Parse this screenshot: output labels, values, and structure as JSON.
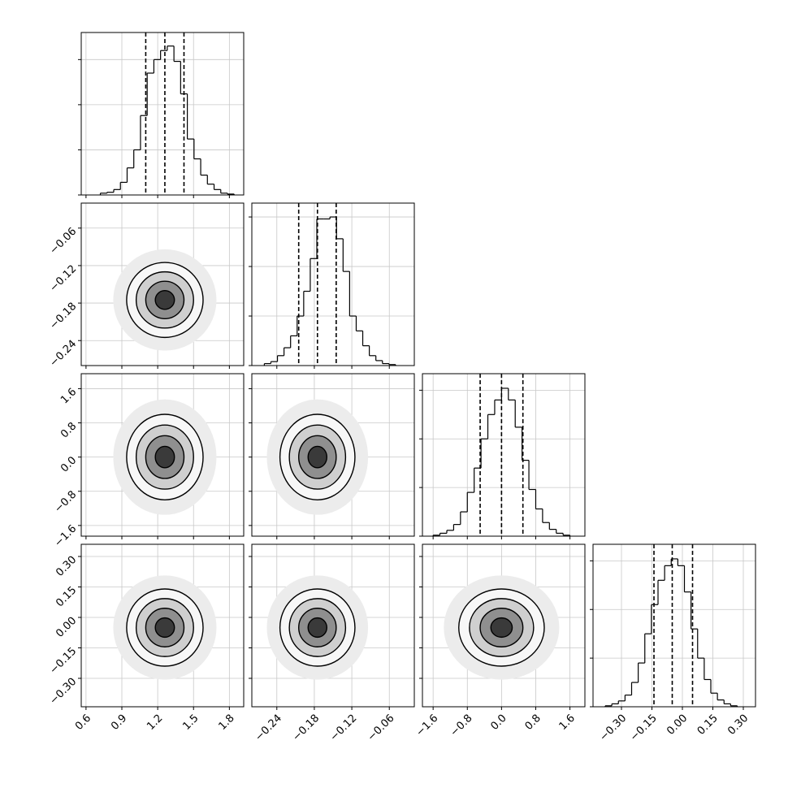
{
  "chart_data": {
    "type": "corner",
    "grid": true,
    "color": "#000000",
    "params": [
      {
        "lim": [
          0.56,
          1.92
        ],
        "ticks": [
          0.6,
          0.9,
          1.2,
          1.5,
          1.8
        ],
        "quantiles": [
          1.1,
          1.26,
          1.42
        ],
        "bins": [
          0.72,
          0.776,
          0.832,
          0.888,
          0.944,
          1.0,
          1.056,
          1.112,
          1.168,
          1.224,
          1.28,
          1.336,
          1.392,
          1.448,
          1.504,
          1.56,
          1.616,
          1.672,
          1.728,
          1.784,
          1.84
        ],
        "counts": [
          2,
          3,
          6,
          14,
          30,
          50,
          88,
          135,
          150,
          160,
          165,
          148,
          112,
          62,
          40,
          22,
          12,
          6,
          2,
          1
        ],
        "hist_ylim": [
          0,
          180
        ],
        "hist_yticks": [
          0,
          50,
          100,
          150
        ]
      },
      {
        "lim": [
          -0.28,
          -0.02
        ],
        "ticks": [
          {
            "value": -0.24,
            "label": "−0.24"
          },
          {
            "value": -0.18,
            "label": "−0.18"
          },
          {
            "value": -0.12,
            "label": "−0.12"
          },
          {
            "value": -0.06,
            "label": "−0.06"
          }
        ],
        "quantiles": [
          -0.205,
          -0.175,
          -0.145
        ],
        "bins": [
          -0.26,
          -0.2495,
          -0.239,
          -0.2285,
          -0.218,
          -0.2075,
          -0.197,
          -0.1865,
          -0.176,
          -0.1655,
          -0.155,
          -0.1445,
          -0.134,
          -0.1235,
          -0.113,
          -0.1025,
          -0.092,
          -0.0815,
          -0.071,
          -0.0605,
          -0.05
        ],
        "counts": [
          2,
          4,
          10,
          18,
          30,
          50,
          75,
          108,
          148,
          148,
          150,
          128,
          95,
          50,
          35,
          20,
          10,
          5,
          2,
          1
        ],
        "hist_ylim": [
          0,
          164
        ],
        "hist_yticks": [
          0,
          50,
          100,
          150
        ]
      },
      {
        "lim": [
          -1.85,
          1.95
        ],
        "ticks": [
          {
            "value": -1.6,
            "label": "−1.6"
          },
          {
            "value": -0.8,
            "label": "−0.8"
          },
          {
            "value": 0.0,
            "label": "0.0"
          },
          0.8,
          1.6
        ],
        "quantiles": [
          -0.5,
          0.0,
          0.5
        ],
        "bins": [
          -1.6,
          -1.44,
          -1.28,
          -1.12,
          -0.96,
          -0.8,
          -0.64,
          -0.48,
          -0.32,
          -0.16,
          0.0,
          0.16,
          0.32,
          0.48,
          0.64,
          0.8,
          0.96,
          1.12,
          1.28,
          1.44,
          1.6
        ],
        "counts": [
          1,
          3,
          6,
          12,
          25,
          45,
          70,
          100,
          125,
          140,
          152,
          140,
          112,
          78,
          48,
          28,
          14,
          7,
          3,
          1
        ],
        "hist_ylim": [
          0,
          167
        ],
        "hist_yticks": [
          0,
          50,
          100,
          150
        ]
      },
      {
        "lim": [
          -0.44,
          0.36
        ],
        "ticks": [
          {
            "value": -0.3,
            "label": "−0.30"
          },
          {
            "value": -0.15,
            "label": "−0.15"
          },
          {
            "value": 0.0,
            "label": "0.00"
          },
          {
            "value": 0.15,
            "label": "0.15"
          },
          {
            "value": 0.3,
            "label": "0.30"
          }
        ],
        "quantiles": [
          -0.14,
          -0.05,
          0.05
        ],
        "bins": [
          -0.38,
          -0.3475,
          -0.315,
          -0.2825,
          -0.25,
          -0.2175,
          -0.185,
          -0.1525,
          -0.12,
          -0.0875,
          -0.055,
          -0.0225,
          0.01,
          0.0425,
          0.075,
          0.1075,
          0.14,
          0.1725,
          0.205,
          0.2375,
          0.27
        ],
        "counts": [
          1,
          3,
          6,
          12,
          25,
          45,
          75,
          105,
          130,
          145,
          152,
          145,
          118,
          80,
          50,
          28,
          14,
          7,
          3,
          1
        ],
        "hist_ylim": [
          0,
          167
        ],
        "hist_yticks": [
          0,
          50,
          100,
          150
        ]
      }
    ]
  }
}
